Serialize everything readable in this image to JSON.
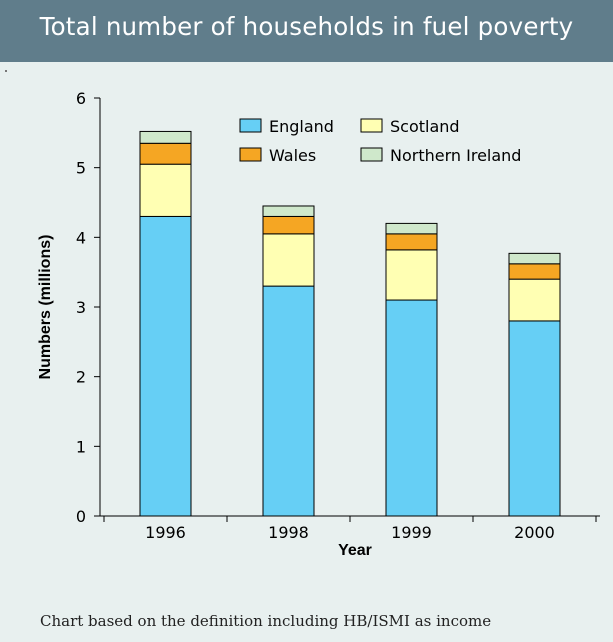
{
  "title": "Total number of households in fuel poverty",
  "note": "Chart based on the definition including HB/ISMI as income",
  "colors": {
    "england": "#66cff5",
    "wales": "#f5a623",
    "scotland": "#ffffb3",
    "northern_ireland": "#cfe8cb",
    "header": "#607d8b",
    "background": "#e8f0ef"
  },
  "chart_data": {
    "type": "bar",
    "stacked": true,
    "categories": [
      "1996",
      "1998",
      "1999",
      "2000"
    ],
    "series": [
      {
        "name": "England",
        "color": "#66cff5",
        "values": [
          4.3,
          3.3,
          3.1,
          2.8
        ]
      },
      {
        "name": "Scotland",
        "color": "#ffffb3",
        "values": [
          0.75,
          0.75,
          0.72,
          0.6
        ]
      },
      {
        "name": "Wales",
        "color": "#f5a623",
        "values": [
          0.3,
          0.25,
          0.23,
          0.22
        ]
      },
      {
        "name": "Northern Ireland",
        "color": "#cfe8cb",
        "values": [
          0.17,
          0.15,
          0.15,
          0.15
        ]
      }
    ],
    "legend_order": [
      "England",
      "Scotland",
      "Wales",
      "Northern Ireland"
    ],
    "xlabel": "Year",
    "ylabel": "Numbers (millions)",
    "ylim": [
      0,
      6
    ],
    "yticks": [
      "0",
      "1",
      "2",
      "3",
      "4",
      "5",
      "6"
    ],
    "grid": false,
    "legend_position": "top-right"
  }
}
